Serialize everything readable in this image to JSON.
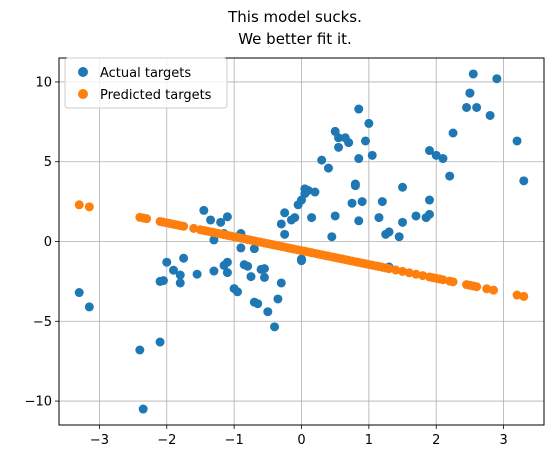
{
  "chart_data": {
    "type": "scatter",
    "title": [
      "This model sucks.",
      "We better fit it."
    ],
    "xlim": [
      -3.6,
      3.6
    ],
    "ylim": [
      -11.5,
      11.5
    ],
    "xticks": [
      -3,
      -2,
      -1,
      0,
      1,
      2,
      3
    ],
    "yticks": [
      -10,
      -5,
      0,
      5,
      10
    ],
    "grid": true,
    "legend_position": "upper-left",
    "series": [
      {
        "name": "Actual targets",
        "color": "#1f77b4",
        "points": [
          [
            -3.3,
            -3.2
          ],
          [
            -3.15,
            -4.1
          ],
          [
            -2.4,
            -6.8
          ],
          [
            -2.35,
            -10.5
          ],
          [
            -2.1,
            -6.3
          ],
          [
            -2.1,
            -2.5
          ],
          [
            -2.05,
            -2.45
          ],
          [
            -2.0,
            -1.3
          ],
          [
            -1.9,
            -1.8
          ],
          [
            -1.8,
            -2.1
          ],
          [
            -1.8,
            -2.6
          ],
          [
            -1.75,
            -1.05
          ],
          [
            -1.55,
            -2.05
          ],
          [
            -1.45,
            1.95
          ],
          [
            -1.35,
            1.35
          ],
          [
            -1.3,
            -1.85
          ],
          [
            -1.3,
            0.1
          ],
          [
            -1.2,
            1.2
          ],
          [
            -1.15,
            -1.5
          ],
          [
            -1.15,
            0.5
          ],
          [
            -1.1,
            -1.3
          ],
          [
            -1.1,
            -1.95
          ],
          [
            -1.1,
            1.55
          ],
          [
            -1.0,
            -2.95
          ],
          [
            -0.95,
            -3.15
          ],
          [
            -0.9,
            -0.4
          ],
          [
            -0.9,
            0.5
          ],
          [
            -0.85,
            -1.45
          ],
          [
            -0.8,
            -1.55
          ],
          [
            -0.75,
            -2.2
          ],
          [
            -0.7,
            -0.45
          ],
          [
            -0.7,
            -3.8
          ],
          [
            -0.65,
            -3.9
          ],
          [
            -0.6,
            -1.75
          ],
          [
            -0.55,
            -1.7
          ],
          [
            -0.55,
            -2.25
          ],
          [
            -0.5,
            -4.4
          ],
          [
            -0.4,
            -5.35
          ],
          [
            -0.35,
            -3.6
          ],
          [
            -0.3,
            -2.6
          ],
          [
            -0.3,
            1.1
          ],
          [
            -0.25,
            1.8
          ],
          [
            -0.25,
            0.45
          ],
          [
            -0.15,
            1.35
          ],
          [
            -0.1,
            1.5
          ],
          [
            -0.05,
            2.3
          ],
          [
            0.0,
            -1.2
          ],
          [
            0.0,
            -1.1
          ],
          [
            0.0,
            2.6
          ],
          [
            0.05,
            3.0
          ],
          [
            0.05,
            3.3
          ],
          [
            0.1,
            3.2
          ],
          [
            0.15,
            1.5
          ],
          [
            0.2,
            3.1
          ],
          [
            0.3,
            5.1
          ],
          [
            0.4,
            4.6
          ],
          [
            0.45,
            0.3
          ],
          [
            0.5,
            1.6
          ],
          [
            0.5,
            6.9
          ],
          [
            0.55,
            6.5
          ],
          [
            0.55,
            5.9
          ],
          [
            0.65,
            6.5
          ],
          [
            0.7,
            6.2
          ],
          [
            0.75,
            2.4
          ],
          [
            0.8,
            3.6
          ],
          [
            0.8,
            3.5
          ],
          [
            0.85,
            8.3
          ],
          [
            0.85,
            5.2
          ],
          [
            0.85,
            1.3
          ],
          [
            0.9,
            2.5
          ],
          [
            0.95,
            6.3
          ],
          [
            1.0,
            7.4
          ],
          [
            1.05,
            5.4
          ],
          [
            1.15,
            1.5
          ],
          [
            1.2,
            2.5
          ],
          [
            1.25,
            0.45
          ],
          [
            1.3,
            0.6
          ],
          [
            1.3,
            -1.6
          ],
          [
            1.45,
            0.3
          ],
          [
            1.5,
            3.4
          ],
          [
            1.5,
            1.2
          ],
          [
            1.7,
            1.6
          ],
          [
            1.85,
            1.5
          ],
          [
            1.9,
            1.7
          ],
          [
            1.9,
            2.6
          ],
          [
            1.9,
            5.7
          ],
          [
            2.0,
            5.4
          ],
          [
            2.1,
            5.2
          ],
          [
            2.2,
            4.1
          ],
          [
            2.25,
            6.8
          ],
          [
            2.45,
            8.4
          ],
          [
            2.5,
            9.3
          ],
          [
            2.5,
            9.3
          ],
          [
            2.55,
            10.5
          ],
          [
            2.6,
            8.4
          ],
          [
            2.8,
            7.9
          ],
          [
            2.9,
            10.2
          ],
          [
            3.2,
            6.3
          ],
          [
            3.3,
            3.8
          ]
        ]
      },
      {
        "name": "Predicted targets",
        "color": "#ff7f0e",
        "fit": {
          "slope": -0.87,
          "intercept": -0.57
        },
        "x": [
          -3.3,
          -3.15,
          -2.4,
          -2.35,
          -2.3,
          -2.1,
          -2.05,
          -2.0,
          -1.95,
          -1.9,
          -1.85,
          -1.8,
          -1.75,
          -1.6,
          -1.5,
          -1.45,
          -1.4,
          -1.35,
          -1.3,
          -1.25,
          -1.2,
          -1.15,
          -1.1,
          -1.05,
          -1.0,
          -0.95,
          -0.9,
          -0.85,
          -0.8,
          -0.75,
          -0.7,
          -0.65,
          -0.6,
          -0.55,
          -0.5,
          -0.45,
          -0.4,
          -0.35,
          -0.3,
          -0.25,
          -0.2,
          -0.15,
          -0.1,
          -0.05,
          0.0,
          0.05,
          0.1,
          0.15,
          0.2,
          0.25,
          0.3,
          0.35,
          0.4,
          0.45,
          0.5,
          0.55,
          0.6,
          0.65,
          0.7,
          0.75,
          0.8,
          0.85,
          0.9,
          0.95,
          1.0,
          1.05,
          1.1,
          1.15,
          1.2,
          1.25,
          1.3,
          1.4,
          1.5,
          1.6,
          1.7,
          1.8,
          1.9,
          1.95,
          2.0,
          2.05,
          2.1,
          2.2,
          2.25,
          2.45,
          2.5,
          2.55,
          2.6,
          2.75,
          2.85,
          3.2,
          3.3
        ]
      }
    ]
  }
}
